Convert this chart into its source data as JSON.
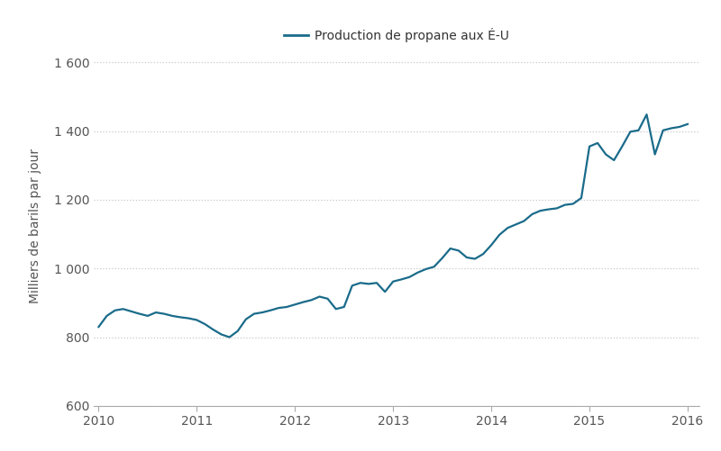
{
  "title": "Production de propane aux É-U",
  "ylabel": "Milliers de barils par jour",
  "line_color": "#1a6b8a",
  "background_color": "#ffffff",
  "ylim": [
    600,
    1650
  ],
  "yticks": [
    600,
    800,
    1000,
    1200,
    1400,
    1600
  ],
  "ytick_labels": [
    "600",
    "800",
    "1 000",
    "1 200",
    "1 400",
    "1 600"
  ],
  "xlim_start": 2009.95,
  "xlim_end": 2016.12,
  "xtick_labels": [
    "2010",
    "2011",
    "2012",
    "2013",
    "2014",
    "2015",
    "2016"
  ],
  "x_values": [
    2010.0,
    2010.083,
    2010.167,
    2010.25,
    2010.333,
    2010.417,
    2010.5,
    2010.583,
    2010.667,
    2010.75,
    2010.833,
    2010.917,
    2011.0,
    2011.083,
    2011.167,
    2011.25,
    2011.333,
    2011.417,
    2011.5,
    2011.583,
    2011.667,
    2011.75,
    2011.833,
    2011.917,
    2012.0,
    2012.083,
    2012.167,
    2012.25,
    2012.333,
    2012.417,
    2012.5,
    2012.583,
    2012.667,
    2012.75,
    2012.833,
    2012.917,
    2013.0,
    2013.083,
    2013.167,
    2013.25,
    2013.333,
    2013.417,
    2013.5,
    2013.583,
    2013.667,
    2013.75,
    2013.833,
    2013.917,
    2014.0,
    2014.083,
    2014.167,
    2014.25,
    2014.333,
    2014.417,
    2014.5,
    2014.583,
    2014.667,
    2014.75,
    2014.833,
    2014.917,
    2015.0,
    2015.083,
    2015.167,
    2015.25,
    2015.333,
    2015.417,
    2015.5,
    2015.583,
    2015.667,
    2015.75,
    2015.833,
    2015.917,
    2016.0
  ],
  "y_values": [
    830,
    862,
    878,
    882,
    875,
    868,
    862,
    872,
    868,
    862,
    858,
    855,
    850,
    838,
    822,
    808,
    800,
    818,
    852,
    868,
    872,
    878,
    885,
    888,
    895,
    902,
    908,
    918,
    912,
    882,
    888,
    950,
    958,
    955,
    958,
    932,
    962,
    968,
    975,
    988,
    998,
    1005,
    1030,
    1058,
    1052,
    1032,
    1028,
    1042,
    1068,
    1098,
    1118,
    1128,
    1138,
    1158,
    1168,
    1172,
    1175,
    1185,
    1188,
    1205,
    1355,
    1365,
    1332,
    1315,
    1355,
    1398,
    1402,
    1448,
    1332,
    1402,
    1408,
    1412,
    1420
  ],
  "legend_label": "Production de propane aux É-U",
  "grid_color": "#c8c8c8",
  "line_width": 1.6
}
